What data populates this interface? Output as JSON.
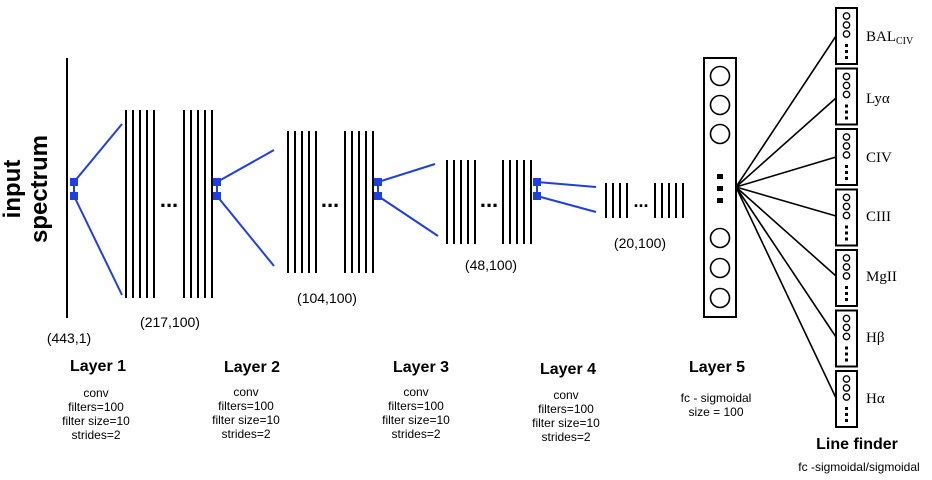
{
  "input": {
    "label_line1": "input",
    "label_line2": "spectrum",
    "dims": "(443,1)"
  },
  "layers": [
    {
      "name": "Layer 1",
      "dims": "(217,100)",
      "params": [
        "conv",
        "filters=100",
        "filter size=10",
        "strides=2"
      ]
    },
    {
      "name": "Layer 2",
      "dims": "(104,100)",
      "params": [
        "conv",
        "filters=100",
        "filter size=10",
        "strides=2"
      ]
    },
    {
      "name": "Layer 3",
      "dims": "(48,100)",
      "params": [
        "conv",
        "filters=100",
        "filter size=10",
        "strides=2"
      ]
    },
    {
      "name": "Layer 4",
      "dims": "(20,100)",
      "params": [
        "conv",
        "filters=100",
        "filter size=10",
        "strides=2"
      ]
    },
    {
      "name": "Layer 5",
      "params": [
        "fc - sigmoidal",
        "size = 100"
      ]
    }
  ],
  "ellipsis": "...",
  "line_finder": {
    "title": "Line finder",
    "subtitle": "fc -sigmoidal/sigmoidal",
    "outputs": [
      {
        "main": "BAL",
        "sub": "CIV"
      },
      {
        "main": "Lyα"
      },
      {
        "main": "CIV"
      },
      {
        "main": "CIII"
      },
      {
        "main": "MgII"
      },
      {
        "main": "Hβ"
      },
      {
        "main": "Hα"
      }
    ]
  },
  "colors": {
    "connection": "#1f3fdf",
    "ink": "#000000"
  }
}
